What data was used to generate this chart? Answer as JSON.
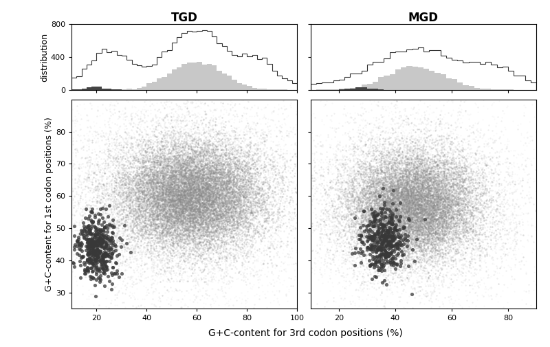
{
  "title_tgd": "TGD",
  "title_mgd": "MGD",
  "xlabel": "G+C-content for 3rd codon positions (%)",
  "ylabel_scatter": "G+C-content for 1st codon positions (%)",
  "ylabel_hist": "distribution",
  "tgd_xlim": [
    10,
    100
  ],
  "tgd_ylim": [
    25,
    90
  ],
  "mgd_xlim": [
    10,
    90
  ],
  "mgd_ylim": [
    25,
    90
  ],
  "hist_ylim": [
    0,
    800
  ],
  "hist_color_light": "#c8c8c8",
  "hist_color_dark": "#444444",
  "hist_line_color": "#333333",
  "bg_color": "#ffffff"
}
